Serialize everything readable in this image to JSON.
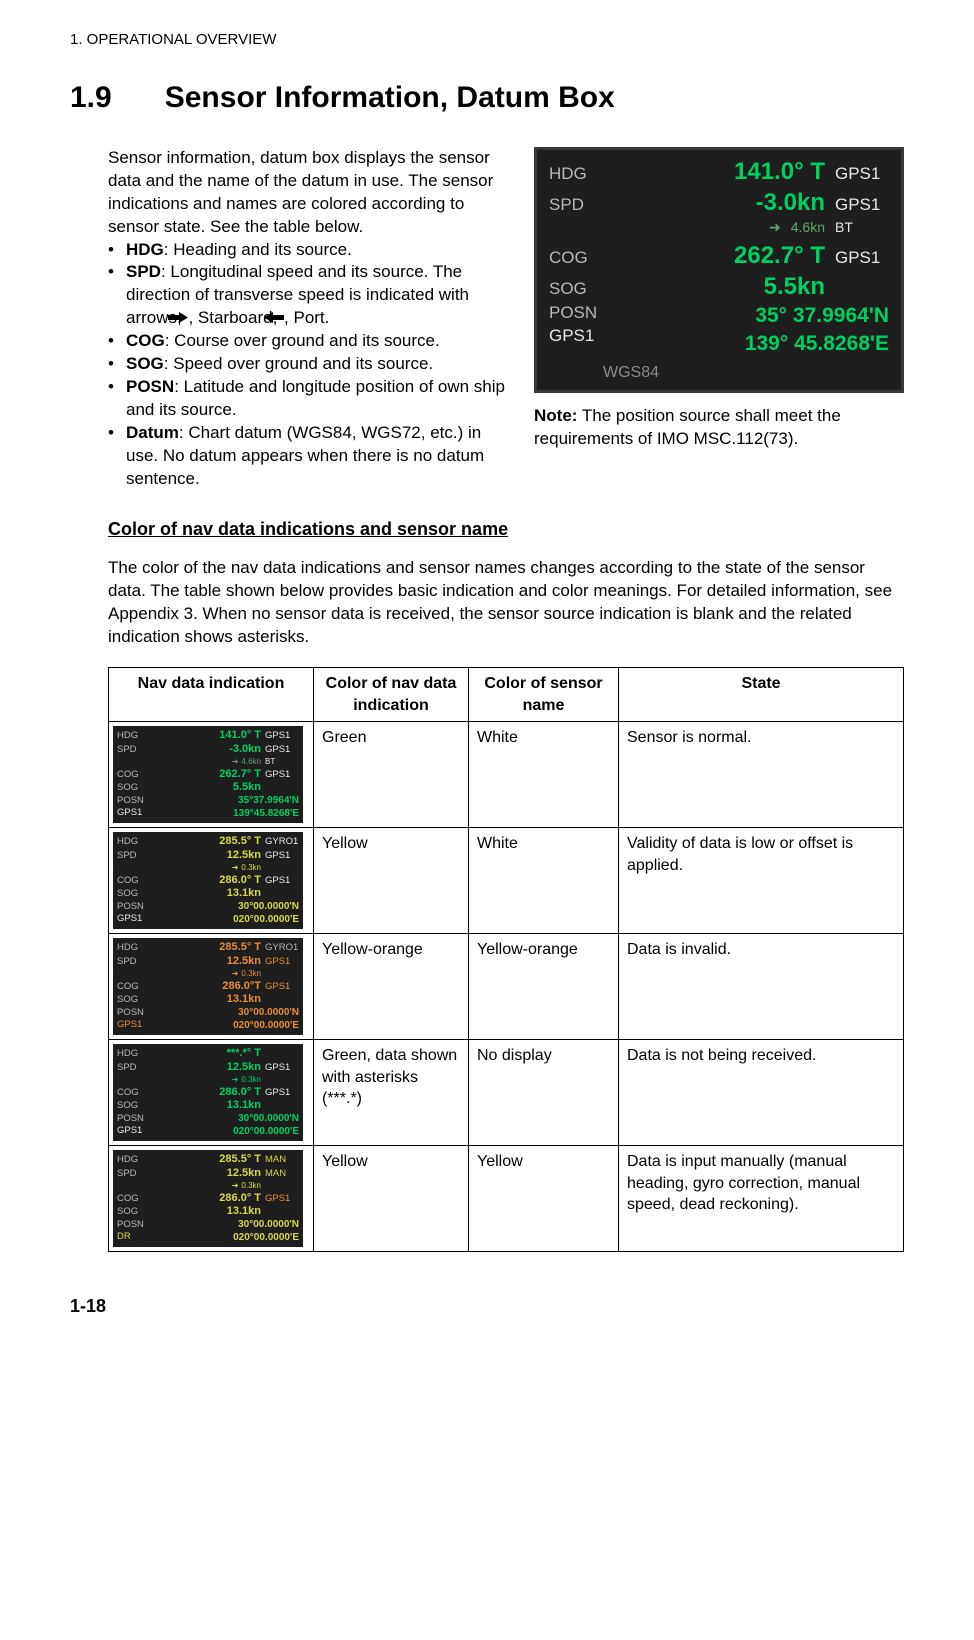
{
  "colors": {
    "bg": "#1e1e1e",
    "labelGray": "#b8b8b8",
    "srcWhite": "#e8e8e8",
    "green": "#00d060",
    "subGreen": "#5aa86a",
    "datumGray": "#8a8a8a",
    "yellow": "#d8d84a",
    "yelloworange": "#e88c3a",
    "yellowSensor": "#d8d84a"
  },
  "header": "1.  OPERATIONAL OVERVIEW",
  "section": {
    "num": "1.9",
    "title": "Sensor Information, Datum Box"
  },
  "intro": "Sensor information, datum box displays the sensor data and the name of the datum in use. The sensor indications and names are colored according to sensor state. See the table below.",
  "bullets": [
    {
      "term": "HDG",
      "text": ": Heading and its source."
    },
    {
      "term": "SPD",
      "text": ": Longitudinal speed and its source. The direction of transverse speed is indicated with arrows, ",
      "tail": ", Starboard, ",
      "tail2": ", Port."
    },
    {
      "term": "COG",
      "text": ": Course over ground and its source."
    },
    {
      "term": "SOG",
      "text": ": Speed over ground and its source."
    },
    {
      "term": "POSN",
      "text": ": Latitude and longitude position of own ship and its source."
    },
    {
      "term": "Datum",
      "text": ": Chart datum (WGS84, WGS72, etc.) in use. No datum appears when there is no datum sentence."
    }
  ],
  "note": {
    "label": "Note:",
    "text": " The position source shall meet the requirements of IMO MSC.112(73)."
  },
  "subheading": "Color of nav data indications and sensor name",
  "bodyP": "The color of the nav data indications and sensor names changes according to the state of the sensor data. The table shown below provides basic indication and color meanings. For detailed information, see Appendix 3. When no sensor data is received, the sensor source indication is blank and the related indication shows asterisks.",
  "table": {
    "headers": [
      "Nav data indication",
      "Color of nav data indication",
      "Color of sensor name",
      "State"
    ]
  },
  "mainPanel": {
    "hdg": {
      "lbl": "HDG",
      "val": "141.0° T",
      "src": "GPS1"
    },
    "spd": {
      "lbl": "SPD",
      "val": "-3.0kn",
      "src": "GPS1"
    },
    "spdSub": {
      "arrow": "➜",
      "val": "4.6kn",
      "src": "BT"
    },
    "cog": {
      "lbl": "COG",
      "val": "262.7° T",
      "src": "GPS1"
    },
    "sog": {
      "lbl": "SOG",
      "val": "5.5kn",
      "src": ""
    },
    "posn": {
      "lbl1": "POSN",
      "lbl2": "GPS1",
      "lat": "35° 37.9964'N",
      "lon": "139° 45.8268'E"
    },
    "datum": "WGS84"
  },
  "rows": [
    {
      "navColor": "Green",
      "sensorColor": "White",
      "state": "Sensor is normal.",
      "thumb": {
        "dataColor": "#00d060",
        "srcColor": "#e8e8e8",
        "subColor": "#5aa86a",
        "hdg": {
          "v": "141.0° T",
          "s": "GPS1"
        },
        "spd": {
          "v": "-3.0kn",
          "s": "GPS1"
        },
        "sub": {
          "a": "➜",
          "v": "4.6kn",
          "s": "BT"
        },
        "cog": {
          "v": "262.7° T",
          "s": "GPS1"
        },
        "sog": {
          "v": "5.5kn",
          "s": ""
        },
        "posn": {
          "l1": "POSN",
          "l2": "GPS1",
          "lat": "35°37.9964'N",
          "lon": "139°45.8268'E"
        }
      }
    },
    {
      "navColor": "Yellow",
      "sensorColor": "White",
      "state": "Validity of data is low or offset is applied.",
      "thumb": {
        "dataColor": "#d8d84a",
        "srcColor": "#e8e8e8",
        "subColor": "#d8d84a",
        "hdg": {
          "v": "285.5° T",
          "s": "GYRO1"
        },
        "spd": {
          "v": "12.5kn",
          "s": "GPS1"
        },
        "sub": {
          "a": "➜",
          "v": "0.3kn",
          "s": ""
        },
        "cog": {
          "v": "286.0° T",
          "s": "GPS1"
        },
        "sog": {
          "v": "13.1kn",
          "s": ""
        },
        "posn": {
          "l1": "POSN",
          "l2": "GPS1",
          "lat": "30°00.0000'N",
          "lon": "020°00.0000'E"
        }
      }
    },
    {
      "navColor": "Yellow-orange",
      "sensorColor": "Yellow-orange",
      "state": "Data is invalid.",
      "thumb": {
        "dataColor": "#e88c3a",
        "srcColor": "#e88c3a",
        "subColor": "#e88c3a",
        "hdgSrcColor": "#b8b8b8",
        "hdg": {
          "v": "285.5° T",
          "s": "GYRO1"
        },
        "spd": {
          "v": "12.5kn",
          "s": "GPS1"
        },
        "sub": {
          "a": "➜",
          "v": "0.3kn",
          "s": ""
        },
        "cog": {
          "v": "286.0°T",
          "s": "GPS1"
        },
        "sog": {
          "v": "13.1kn",
          "s": ""
        },
        "posn": {
          "l1": "POSN",
          "l2": "GPS1",
          "lat": "30°00.0000'N",
          "lon": "020°00.0000'E"
        }
      }
    },
    {
      "navColor": "Green, data shown with asterisks (***.*)",
      "sensorColor": "No display",
      "state": "Data is not being received.",
      "thumb": {
        "dataColor": "#00d060",
        "srcColor": "#e8e8e8",
        "subColor": "#00d060",
        "hdg": {
          "v": "***.*° T",
          "s": ""
        },
        "spd": {
          "v": "12.5kn",
          "s": "GPS1"
        },
        "sub": {
          "a": "➜",
          "v": "0.3kn",
          "s": ""
        },
        "cog": {
          "v": "286.0° T",
          "s": "GPS1"
        },
        "sog": {
          "v": "13.1kn",
          "s": ""
        },
        "posn": {
          "l1": "POSN",
          "l2": "GPS1",
          "lat": "30°00.0000'N",
          "lon": "020°00.0000'E"
        }
      }
    },
    {
      "navColor": "Yellow",
      "sensorColor": "Yellow",
      "state": "Data is input manually (manual heading, gyro correction, manual speed, dead reckoning).",
      "thumb": {
        "dataColor": "#d8d84a",
        "srcColor": "#d8d84a",
        "subColor": "#d8d84a",
        "cogSrcColor": "#e88c3a",
        "hdg": {
          "v": "285.5° T",
          "s": "MAN"
        },
        "spd": {
          "v": "12.5kn",
          "s": "MAN"
        },
        "sub": {
          "a": "➜",
          "v": "0.3kn",
          "s": ""
        },
        "cog": {
          "v": "286.0° T",
          "s": "GPS1"
        },
        "sog": {
          "v": "13.1kn",
          "s": ""
        },
        "posn": {
          "l1": "POSN",
          "l2": "DR",
          "lat": "30°00.0000'N",
          "lon": "020°00.0000'E"
        }
      }
    }
  ],
  "footer": "1-18"
}
